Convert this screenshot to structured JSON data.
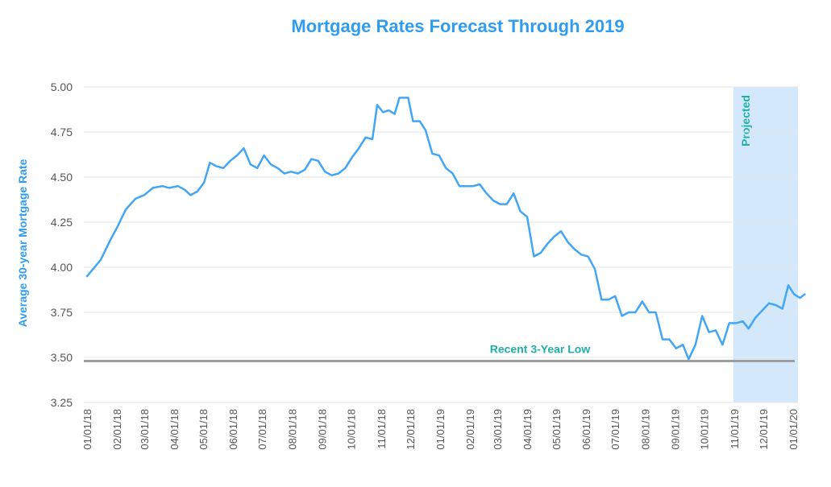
{
  "chart_data": {
    "type": "line",
    "title": "Mortgage Rates Forecast Through 2019",
    "xlabel": "",
    "ylabel": "Average 30-year Mortgage Rate",
    "ylim": [
      3.25,
      5.0
    ],
    "yticks": [
      "5.00",
      "4.75",
      "4.50",
      "4.25",
      "4.00",
      "3.75",
      "3.50",
      "3.25"
    ],
    "xticks": [
      "01/01/18",
      "02/01/18",
      "03/01/18",
      "04/01/18",
      "05/01/18",
      "06/01/18",
      "07/01/18",
      "08/01/18",
      "09/01/18",
      "10/01/18",
      "11/01/18",
      "12/01/18",
      "01/01/19",
      "02/01/19",
      "03/01/19",
      "04/01/19",
      "05/01/19",
      "06/01/19",
      "07/01/19",
      "08/01/19",
      "09/01/19",
      "10/01/19",
      "11/01/19",
      "12/01/19",
      "01/01/20"
    ],
    "grid": true,
    "line_color": "#42a5f5",
    "accent_color": "#2f9cf0",
    "label_color": "#1fb0a8",
    "series": [
      {
        "values": [
          {
            "x": "01/01/18",
            "y": 3.95
          },
          {
            "x": "01/15/18",
            "y": 4.04
          },
          {
            "x": "01/25/18",
            "y": 4.15
          },
          {
            "x": "02/01/18",
            "y": 4.22
          },
          {
            "x": "02/10/18",
            "y": 4.32
          },
          {
            "x": "02/20/18",
            "y": 4.38
          },
          {
            "x": "03/01/18",
            "y": 4.4
          },
          {
            "x": "03/10/18",
            "y": 4.44
          },
          {
            "x": "03/20/18",
            "y": 4.45
          },
          {
            "x": "03/27/18",
            "y": 4.44
          },
          {
            "x": "04/05/18",
            "y": 4.45
          },
          {
            "x": "04/12/18",
            "y": 4.43
          },
          {
            "x": "04/18/18",
            "y": 4.4
          },
          {
            "x": "04/25/18",
            "y": 4.42
          },
          {
            "x": "05/02/18",
            "y": 4.47
          },
          {
            "x": "05/08/18",
            "y": 4.58
          },
          {
            "x": "05/15/18",
            "y": 4.56
          },
          {
            "x": "05/22/18",
            "y": 4.55
          },
          {
            "x": "05/29/18",
            "y": 4.59
          },
          {
            "x": "06/05/18",
            "y": 4.62
          },
          {
            "x": "06/12/18",
            "y": 4.66
          },
          {
            "x": "06/19/18",
            "y": 4.57
          },
          {
            "x": "06/26/18",
            "y": 4.55
          },
          {
            "x": "07/03/18",
            "y": 4.62
          },
          {
            "x": "07/10/18",
            "y": 4.57
          },
          {
            "x": "07/17/18",
            "y": 4.55
          },
          {
            "x": "07/24/18",
            "y": 4.52
          },
          {
            "x": "07/31/18",
            "y": 4.53
          },
          {
            "x": "08/07/18",
            "y": 4.52
          },
          {
            "x": "08/14/18",
            "y": 4.54
          },
          {
            "x": "08/21/18",
            "y": 4.6
          },
          {
            "x": "08/28/18",
            "y": 4.59
          },
          {
            "x": "09/04/18",
            "y": 4.53
          },
          {
            "x": "09/11/18",
            "y": 4.51
          },
          {
            "x": "09/18/18",
            "y": 4.52
          },
          {
            "x": "09/25/18",
            "y": 4.55
          },
          {
            "x": "10/02/18",
            "y": 4.61
          },
          {
            "x": "10/09/18",
            "y": 4.66
          },
          {
            "x": "10/16/18",
            "y": 4.72
          },
          {
            "x": "10/23/18",
            "y": 4.71
          },
          {
            "x": "10/28/18",
            "y": 4.9
          },
          {
            "x": "11/03/18",
            "y": 4.86
          },
          {
            "x": "11/09/18",
            "y": 4.87
          },
          {
            "x": "11/15/18",
            "y": 4.85
          },
          {
            "x": "11/20/18",
            "y": 4.94
          },
          {
            "x": "11/29/18",
            "y": 4.94
          },
          {
            "x": "12/04/18",
            "y": 4.81
          },
          {
            "x": "12/11/18",
            "y": 4.81
          },
          {
            "x": "12/17/18",
            "y": 4.76
          },
          {
            "x": "12/24/18",
            "y": 4.63
          },
          {
            "x": "12/31/18",
            "y": 4.62
          },
          {
            "x": "01/07/19",
            "y": 4.55
          },
          {
            "x": "01/14/19",
            "y": 4.52
          },
          {
            "x": "01/21/19",
            "y": 4.45
          },
          {
            "x": "01/28/19",
            "y": 4.45
          },
          {
            "x": "02/04/19",
            "y": 4.45
          },
          {
            "x": "02/11/19",
            "y": 4.46
          },
          {
            "x": "02/18/19",
            "y": 4.41
          },
          {
            "x": "02/25/19",
            "y": 4.37
          },
          {
            "x": "03/04/19",
            "y": 4.35
          },
          {
            "x": "03/11/19",
            "y": 4.35
          },
          {
            "x": "03/18/19",
            "y": 4.41
          },
          {
            "x": "03/25/19",
            "y": 4.31
          },
          {
            "x": "04/01/19",
            "y": 4.28
          },
          {
            "x": "04/08/19",
            "y": 4.06
          },
          {
            "x": "04/15/19",
            "y": 4.08
          },
          {
            "x": "04/22/19",
            "y": 4.13
          },
          {
            "x": "04/29/19",
            "y": 4.17
          },
          {
            "x": "05/06/19",
            "y": 4.2
          },
          {
            "x": "05/13/19",
            "y": 4.14
          },
          {
            "x": "05/20/19",
            "y": 4.1
          },
          {
            "x": "05/27/19",
            "y": 4.07
          },
          {
            "x": "06/03/19",
            "y": 4.06
          },
          {
            "x": "06/10/19",
            "y": 3.99
          },
          {
            "x": "06/17/19",
            "y": 3.82
          },
          {
            "x": "06/24/19",
            "y": 3.82
          },
          {
            "x": "07/01/19",
            "y": 3.84
          },
          {
            "x": "07/08/19",
            "y": 3.73
          },
          {
            "x": "07/15/19",
            "y": 3.75
          },
          {
            "x": "07/22/19",
            "y": 3.75
          },
          {
            "x": "07/29/19",
            "y": 3.81
          },
          {
            "x": "08/05/19",
            "y": 3.75
          },
          {
            "x": "08/12/19",
            "y": 3.75
          },
          {
            "x": "08/19/19",
            "y": 3.6
          },
          {
            "x": "08/26/19",
            "y": 3.6
          },
          {
            "x": "09/02/19",
            "y": 3.55
          },
          {
            "x": "09/09/19",
            "y": 3.57
          },
          {
            "x": "09/15/19",
            "y": 3.49
          },
          {
            "x": "09/22/19",
            "y": 3.57
          },
          {
            "x": "09/29/19",
            "y": 3.73
          },
          {
            "x": "10/06/19",
            "y": 3.64
          },
          {
            "x": "10/13/19",
            "y": 3.65
          },
          {
            "x": "10/20/19",
            "y": 3.57
          },
          {
            "x": "10/27/19",
            "y": 3.69
          },
          {
            "x": "11/03/19",
            "y": 3.69
          },
          {
            "x": "11/10/19",
            "y": 3.7
          },
          {
            "x": "11/16/19",
            "y": 3.66
          },
          {
            "x": "11/23/19",
            "y": 3.72
          },
          {
            "x": "11/30/19",
            "y": 3.76
          },
          {
            "x": "12/07/19",
            "y": 3.8
          },
          {
            "x": "12/14/19",
            "y": 3.79
          },
          {
            "x": "12/21/19",
            "y": 3.77
          },
          {
            "x": "12/27/19",
            "y": 3.9
          },
          {
            "x": "01/02/20",
            "y": 3.85
          },
          {
            "x": "01/08/20",
            "y": 3.83
          },
          {
            "x": "01/13/20",
            "y": 3.85
          }
        ]
      }
    ],
    "reference_line": {
      "label": "Recent 3-Year Low",
      "y": 3.48,
      "color": "#9e9e9e"
    },
    "shaded_region": {
      "label": "Projected",
      "x_start": "10/27/19",
      "x_end": "01/13/20",
      "color": "#d4e8fb"
    }
  }
}
